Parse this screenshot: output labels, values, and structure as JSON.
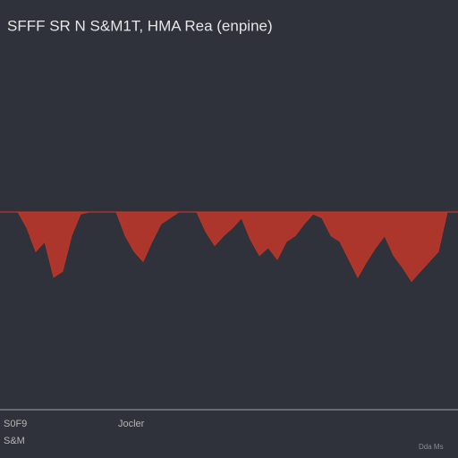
{
  "chart_data": {
    "type": "area",
    "title": "SFFF SR N S&M1T, HMA Rea (enpine)",
    "x": [
      0,
      2,
      4,
      6,
      8,
      10,
      12,
      14,
      16,
      18,
      20,
      22,
      24,
      26,
      28,
      30,
      32,
      34,
      36,
      38,
      40,
      42,
      44,
      46,
      48,
      50,
      52,
      54,
      56,
      58,
      60,
      62,
      64,
      66,
      68,
      70,
      72,
      74,
      76,
      78,
      80,
      82,
      84,
      86,
      88,
      90,
      92,
      94,
      96,
      98,
      100
    ],
    "series": [
      {
        "color": "#b8362b",
        "values": [
          0,
          0,
          0,
          -8,
          -20,
          -15,
          -33,
          -30,
          -12,
          -1,
          0,
          0,
          0,
          0,
          -12,
          -20,
          -25,
          -15,
          -6,
          -3,
          0,
          0,
          0,
          -10,
          -17,
          -12,
          -8,
          -3,
          -14,
          -22,
          -18,
          -24,
          -15,
          -12,
          -6,
          -1,
          -3,
          -12,
          -15,
          -24,
          -33,
          -25,
          -18,
          -12,
          -22,
          -28,
          -35,
          -30,
          -25,
          -20,
          0
        ]
      }
    ],
    "xlim": [
      0,
      100
    ],
    "ylim": [
      -100,
      0
    ],
    "annotations": [
      "S0F9",
      "Jocler",
      "S&M",
      "Dda Ms"
    ]
  }
}
